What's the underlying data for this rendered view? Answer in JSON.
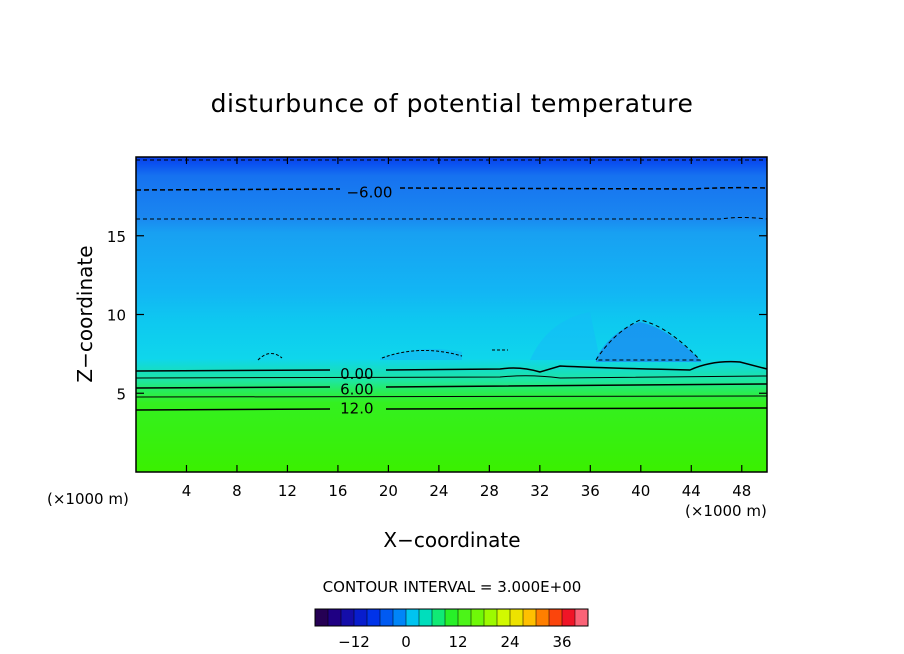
{
  "chart_data": {
    "type": "heatmap",
    "title": "disturbunce of potential temperature",
    "xlabel": "X−coordinate",
    "ylabel": "Z−coordinate",
    "x_unit_left": "(×1000 m)",
    "x_unit_right": "(×1000 m)",
    "xlim": [
      0,
      50
    ],
    "ylim": [
      0,
      20
    ],
    "x_ticks": [
      4,
      8,
      12,
      16,
      20,
      24,
      28,
      32,
      36,
      40,
      44,
      48
    ],
    "y_ticks": [
      5,
      10,
      15
    ],
    "contour_interval_text": "CONTOUR INTERVAL = 3.000E+00",
    "contour_labels": [
      {
        "text": "−6.00",
        "x": 18.5,
        "z": 17.8
      },
      {
        "text": "0.00",
        "x": 17.5,
        "z": 6.3
      },
      {
        "text": "6.00",
        "x": 17.5,
        "z": 5.3
      },
      {
        "text": "12.0",
        "x": 17.5,
        "z": 4.1
      }
    ],
    "colorbar": {
      "min": -21,
      "max": 42,
      "step": 3,
      "tick_values": [
        -12,
        0,
        12,
        24,
        36
      ],
      "tick_labels": [
        "−12",
        "0",
        "12",
        "24",
        "36"
      ]
    },
    "colors": {
      "top_band": "#0a44f0",
      "upper_layer": "#1e8cf0",
      "mid_layer": "#12aaf5",
      "lower_layer": "#0fd2ee",
      "transition": "#1adca0",
      "bottom_layer": "#38f000"
    }
  }
}
